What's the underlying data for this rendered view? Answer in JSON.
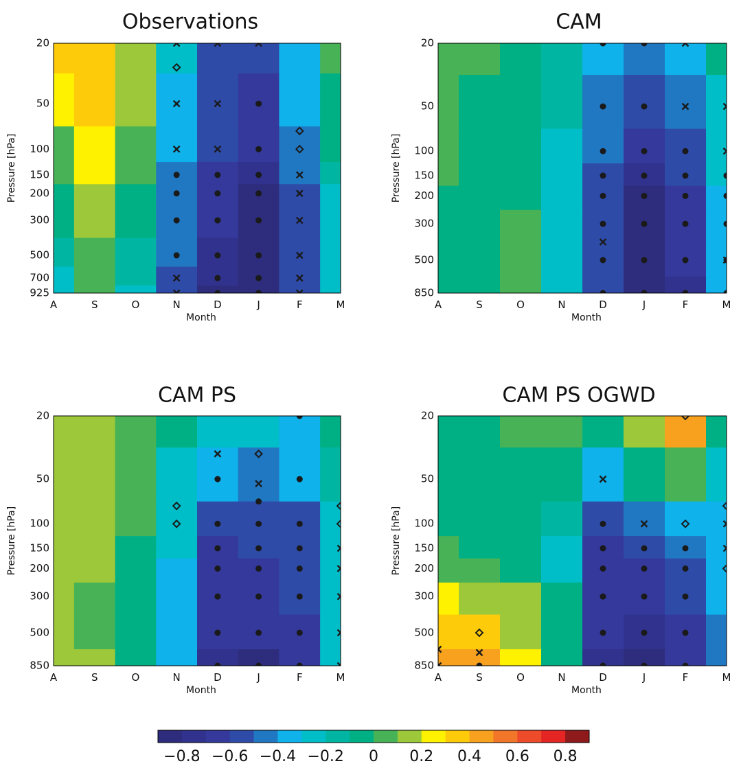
{
  "chart_data": {
    "type": "heatmap",
    "months": [
      "A",
      "S",
      "O",
      "N",
      "D",
      "J",
      "F",
      "M"
    ],
    "xlabel": "Month",
    "ylabel": "Pressure [hPa]",
    "colorbar": {
      "colors": [
        "#2e2d7d",
        "#31328d",
        "#34399b",
        "#2f4ba8",
        "#2178c2",
        "#0fb2ea",
        "#00bec8",
        "#00b6a3",
        "#00b085",
        "#47b356",
        "#9dc83a",
        "#fff200",
        "#fecb0b",
        "#f7a11f",
        "#f2762a",
        "#ee4b2b",
        "#e52424",
        "#8f1a1b"
      ],
      "tick_labels": [
        "−0.8",
        "−0.6",
        "−0.4",
        "−0.2",
        "0",
        "0.2",
        "0.4",
        "0.6",
        "0.8"
      ],
      "tick_values": [
        -0.8,
        -0.6,
        -0.4,
        -0.2,
        0,
        0.2,
        0.4,
        0.6,
        0.8
      ],
      "range": [
        -0.9,
        0.9
      ]
    },
    "panels": [
      {
        "title": "Observations",
        "levels": [
          20,
          50,
          100,
          150,
          200,
          300,
          500,
          700,
          925
        ],
        "level_labels": [
          "20",
          "50",
          "100",
          "150",
          "200",
          "300",
          "500",
          "700",
          "925"
        ],
        "values": [
          [
            0.3,
            0.35,
            0.15,
            -0.3,
            -0.55,
            -0.55,
            -0.35,
            0.05
          ],
          [
            0.25,
            0.35,
            0.1,
            -0.35,
            -0.55,
            -0.65,
            -0.4,
            -0.05
          ],
          [
            0.05,
            0.25,
            0.05,
            -0.4,
            -0.6,
            -0.7,
            -0.45,
            -0.1
          ],
          [
            0.0,
            0.2,
            0.0,
            -0.45,
            -0.65,
            -0.75,
            -0.5,
            -0.15
          ],
          [
            -0.05,
            0.15,
            -0.05,
            -0.45,
            -0.65,
            -0.8,
            -0.55,
            -0.2
          ],
          [
            -0.1,
            0.1,
            -0.1,
            -0.5,
            -0.7,
            -0.8,
            -0.55,
            -0.2
          ],
          [
            -0.15,
            0.0,
            -0.15,
            -0.5,
            -0.75,
            -0.85,
            -0.55,
            -0.25
          ],
          [
            -0.2,
            0.0,
            -0.15,
            -0.55,
            -0.75,
            -0.85,
            -0.6,
            -0.25
          ],
          [
            -0.25,
            0.05,
            -0.2,
            -0.55,
            -0.8,
            -0.85,
            -0.6,
            -0.25
          ]
        ],
        "sig_circles": [
          [
            4,
            3
          ],
          [
            4,
            4
          ],
          [
            4,
            5
          ],
          [
            4,
            6
          ],
          [
            4,
            7
          ],
          [
            4,
            8
          ],
          [
            5,
            1
          ],
          [
            5,
            2
          ],
          [
            5,
            3
          ],
          [
            5,
            4
          ],
          [
            5,
            5
          ],
          [
            5,
            6
          ],
          [
            5,
            7
          ],
          [
            5,
            8
          ],
          [
            3,
            3
          ],
          [
            3,
            4
          ],
          [
            3,
            5
          ],
          [
            3,
            6
          ]
        ],
        "sig_crosses": [
          [
            3,
            0
          ],
          [
            3,
            7
          ],
          [
            3,
            8
          ],
          [
            4,
            0
          ],
          [
            4,
            1
          ],
          [
            4,
            2
          ],
          [
            5,
            0
          ],
          [
            6,
            3
          ],
          [
            6,
            4
          ],
          [
            6,
            5
          ],
          [
            6,
            6
          ],
          [
            6,
            7
          ],
          [
            6,
            8
          ],
          [
            3,
            1
          ],
          [
            3,
            2
          ]
        ],
        "sig_diamonds": [
          [
            3,
            0.4
          ],
          [
            6,
            1.6
          ],
          [
            6,
            2
          ]
        ]
      },
      {
        "title": "CAM",
        "levels": [
          20,
          50,
          100,
          150,
          200,
          300,
          500,
          850
        ],
        "level_labels": [
          "20",
          "50",
          "100",
          "150",
          "200",
          "300",
          "500",
          "850"
        ],
        "values": [
          [
            0.05,
            0.0,
            -0.05,
            -0.15,
            -0.4,
            -0.45,
            -0.4,
            -0.1
          ],
          [
            0.05,
            -0.05,
            -0.1,
            -0.15,
            -0.45,
            -0.55,
            -0.45,
            -0.2
          ],
          [
            0.05,
            -0.05,
            -0.1,
            -0.2,
            -0.5,
            -0.65,
            -0.55,
            -0.3
          ],
          [
            0.05,
            -0.05,
            -0.1,
            -0.2,
            -0.55,
            -0.75,
            -0.6,
            -0.3
          ],
          [
            -0.05,
            -0.05,
            -0.05,
            -0.2,
            -0.55,
            -0.8,
            -0.65,
            -0.35
          ],
          [
            -0.05,
            -0.05,
            0.05,
            -0.2,
            -0.6,
            -0.8,
            -0.7,
            -0.35
          ],
          [
            -0.05,
            -0.05,
            0.05,
            -0.2,
            -0.6,
            -0.8,
            -0.7,
            -0.35
          ],
          [
            -0.05,
            -0.05,
            0.05,
            -0.2,
            -0.6,
            -0.8,
            -0.75,
            -0.4
          ]
        ],
        "sig_circles": [
          [
            4,
            0
          ],
          [
            4,
            1
          ],
          [
            4,
            2
          ],
          [
            4,
            3
          ],
          [
            4,
            4
          ],
          [
            4,
            5
          ],
          [
            4,
            6
          ],
          [
            4,
            7
          ],
          [
            5,
            0
          ],
          [
            5,
            1
          ],
          [
            5,
            2
          ],
          [
            5,
            3
          ],
          [
            5,
            4
          ],
          [
            5,
            5
          ],
          [
            5,
            6
          ],
          [
            5,
            7
          ],
          [
            6,
            2
          ],
          [
            6,
            3
          ],
          [
            6,
            4
          ],
          [
            6,
            5
          ],
          [
            6,
            6
          ],
          [
            6,
            7
          ],
          [
            7,
            3
          ],
          [
            7,
            4
          ],
          [
            7,
            5
          ],
          [
            7,
            6
          ],
          [
            7,
            7
          ]
        ],
        "sig_crosses": [
          [
            6,
            0
          ],
          [
            6,
            1
          ],
          [
            4,
            5.5
          ],
          [
            7,
            1
          ],
          [
            7,
            2
          ],
          [
            7,
            6
          ]
        ],
        "sig_diamonds": []
      },
      {
        "title": "CAM PS",
        "levels": [
          20,
          50,
          100,
          150,
          200,
          300,
          500,
          850
        ],
        "level_labels": [
          "20",
          "50",
          "100",
          "150",
          "200",
          "300",
          "500",
          "850"
        ],
        "values": [
          [
            0.15,
            0.15,
            0.05,
            -0.1,
            -0.25,
            -0.3,
            -0.35,
            -0.1
          ],
          [
            0.15,
            0.15,
            0.0,
            -0.2,
            -0.4,
            -0.45,
            -0.4,
            -0.15
          ],
          [
            0.1,
            0.15,
            0.0,
            -0.3,
            -0.6,
            -0.6,
            -0.55,
            -0.2
          ],
          [
            0.1,
            0.1,
            -0.05,
            -0.3,
            -0.65,
            -0.6,
            -0.55,
            -0.25
          ],
          [
            0.1,
            0.1,
            -0.05,
            -0.35,
            -0.65,
            -0.65,
            -0.6,
            -0.25
          ],
          [
            0.1,
            0.05,
            -0.05,
            -0.35,
            -0.7,
            -0.65,
            -0.6,
            -0.25
          ],
          [
            0.1,
            0.05,
            -0.05,
            -0.35,
            -0.7,
            -0.7,
            -0.65,
            -0.25
          ],
          [
            0.15,
            0.1,
            -0.05,
            -0.35,
            -0.75,
            -0.8,
            -0.7,
            -0.3
          ]
        ],
        "sig_circles": [
          [
            4,
            1
          ],
          [
            4,
            2
          ],
          [
            4,
            3
          ],
          [
            4,
            4
          ],
          [
            4,
            5
          ],
          [
            4,
            6
          ],
          [
            4,
            7
          ],
          [
            5,
            1.5
          ],
          [
            5,
            2
          ],
          [
            5,
            3
          ],
          [
            5,
            4
          ],
          [
            5,
            5
          ],
          [
            5,
            6
          ],
          [
            5,
            7
          ],
          [
            6,
            0
          ],
          [
            6,
            1
          ],
          [
            6,
            2
          ],
          [
            6,
            3
          ],
          [
            6,
            4
          ],
          [
            6,
            5
          ],
          [
            6,
            6
          ],
          [
            6,
            7
          ]
        ],
        "sig_crosses": [
          [
            4,
            0.6
          ],
          [
            5,
            1.1
          ],
          [
            7,
            3
          ],
          [
            7,
            4
          ],
          [
            7,
            5
          ],
          [
            7,
            6
          ],
          [
            7,
            7
          ]
        ],
        "sig_diamonds": [
          [
            3,
            1.6
          ],
          [
            3,
            2
          ],
          [
            5,
            0.6
          ],
          [
            7,
            1.6
          ],
          [
            7,
            2
          ]
        ]
      },
      {
        "title": "CAM PS OGWD",
        "levels": [
          20,
          50,
          100,
          150,
          200,
          300,
          500,
          850
        ],
        "level_labels": [
          "20",
          "50",
          "100",
          "150",
          "200",
          "300",
          "500",
          "850"
        ],
        "values": [
          [
            -0.05,
            -0.05,
            0.05,
            0.05,
            -0.05,
            0.15,
            0.4,
            -0.1
          ],
          [
            -0.05,
            -0.05,
            -0.05,
            -0.05,
            -0.35,
            -0.1,
            0.05,
            -0.3
          ],
          [
            -0.05,
            -0.05,
            -0.05,
            -0.15,
            -0.6,
            -0.45,
            -0.35,
            -0.35
          ],
          [
            0.0,
            -0.05,
            -0.1,
            -0.25,
            -0.65,
            -0.6,
            -0.5,
            -0.4
          ],
          [
            0.05,
            0.0,
            -0.1,
            -0.25,
            -0.65,
            -0.7,
            -0.55,
            -0.4
          ],
          [
            0.2,
            0.15,
            0.1,
            -0.1,
            -0.7,
            -0.7,
            -0.6,
            -0.4
          ],
          [
            0.3,
            0.3,
            0.15,
            -0.05,
            -0.7,
            -0.75,
            -0.65,
            -0.45
          ],
          [
            0.4,
            0.4,
            0.2,
            -0.05,
            -0.75,
            -0.8,
            -0.7,
            -0.5
          ]
        ],
        "sig_circles": [
          [
            4,
            2
          ],
          [
            4,
            3
          ],
          [
            4,
            4
          ],
          [
            4,
            5
          ],
          [
            4,
            6
          ],
          [
            4,
            7
          ],
          [
            5,
            3
          ],
          [
            5,
            4
          ],
          [
            5,
            5
          ],
          [
            5,
            6
          ],
          [
            5,
            7
          ],
          [
            6,
            3
          ],
          [
            6,
            4
          ],
          [
            6,
            5
          ],
          [
            6,
            6
          ],
          [
            6,
            7
          ],
          [
            1,
            7
          ]
        ],
        "sig_crosses": [
          [
            4,
            1
          ],
          [
            5,
            2
          ],
          [
            0,
            6.5
          ],
          [
            0,
            7
          ],
          [
            1,
            6.6
          ],
          [
            7,
            2
          ],
          [
            7,
            3
          ]
        ],
        "sig_diamonds": [
          [
            1,
            6
          ],
          [
            6,
            0
          ],
          [
            6,
            2
          ],
          [
            7,
            1.6
          ],
          [
            7,
            4
          ]
        ]
      }
    ]
  }
}
